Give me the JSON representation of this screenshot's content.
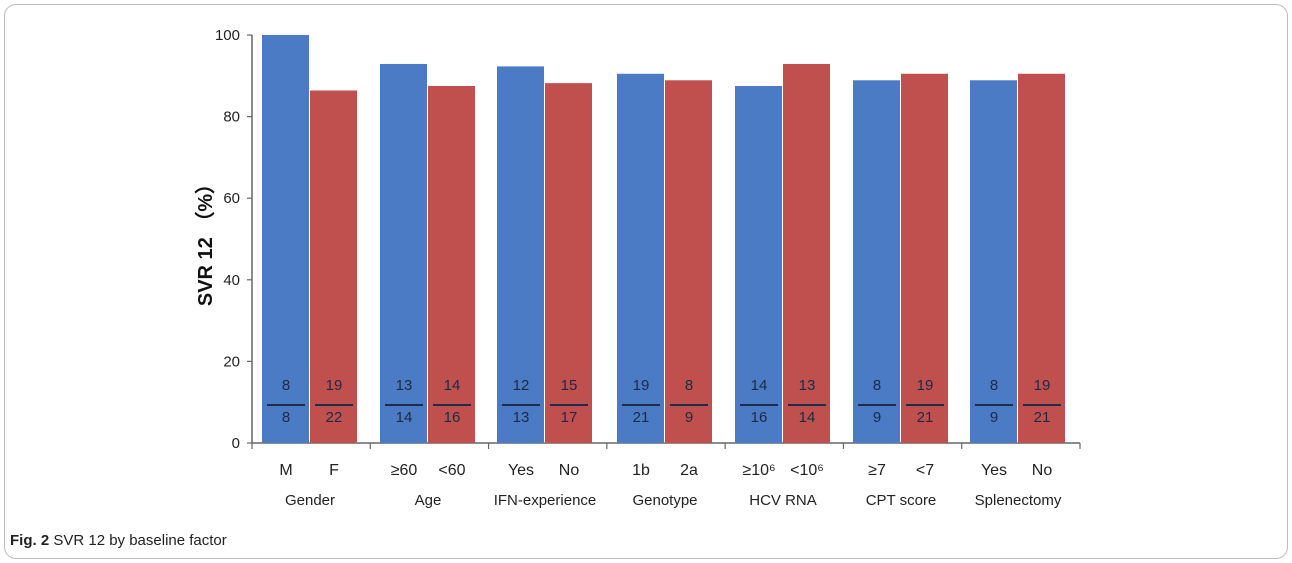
{
  "caption": {
    "label": "Fig. 2",
    "text": "SVR 12 by baseline factor"
  },
  "colors": {
    "series_a": "#4a7bc4",
    "series_b": "#c0504d",
    "axis": "#666666",
    "fraction_line": "#1f2d4d"
  },
  "chart_data": {
    "type": "bar",
    "ylabel": "SVR 12 （%）",
    "ylim": [
      0,
      100
    ],
    "yticks": [
      0,
      20,
      40,
      60,
      80,
      100
    ],
    "grid": false,
    "groups": [
      {
        "name": "Gender",
        "bars": [
          {
            "label": "M",
            "value": 100.0,
            "num": "8",
            "den": "8"
          },
          {
            "label": "F",
            "value": 86.4,
            "num": "19",
            "den": "22"
          }
        ]
      },
      {
        "name": "Age",
        "bars": [
          {
            "label": "≥60",
            "value": 92.9,
            "num": "13",
            "den": "14"
          },
          {
            "label": "<60",
            "value": 87.5,
            "num": "14",
            "den": "16"
          }
        ]
      },
      {
        "name": "IFN-experience",
        "bars": [
          {
            "label": "Yes",
            "value": 92.3,
            "num": "12",
            "den": "13"
          },
          {
            "label": "No",
            "value": 88.2,
            "num": "15",
            "den": "17"
          }
        ]
      },
      {
        "name": "Genotype",
        "bars": [
          {
            "label": "1b",
            "value": 90.5,
            "num": "19",
            "den": "21"
          },
          {
            "label": "2a",
            "value": 88.9,
            "num": "8",
            "den": "9"
          }
        ]
      },
      {
        "name": "HCV RNA",
        "bars": [
          {
            "label": "≥10⁶",
            "value": 87.5,
            "num": "14",
            "den": "16"
          },
          {
            "label": "<10⁶",
            "value": 92.9,
            "num": "13",
            "den": "14"
          }
        ]
      },
      {
        "name": "CPT score",
        "bars": [
          {
            "label": "≥7",
            "value": 88.9,
            "num": "8",
            "den": "9"
          },
          {
            "label": "<7",
            "value": 90.5,
            "num": "19",
            "den": "21"
          }
        ]
      },
      {
        "name": "Splenectomy",
        "bars": [
          {
            "label": "Yes",
            "value": 88.9,
            "num": "8",
            "den": "9"
          },
          {
            "label": "No",
            "value": 90.5,
            "num": "19",
            "den": "21"
          }
        ]
      }
    ]
  }
}
